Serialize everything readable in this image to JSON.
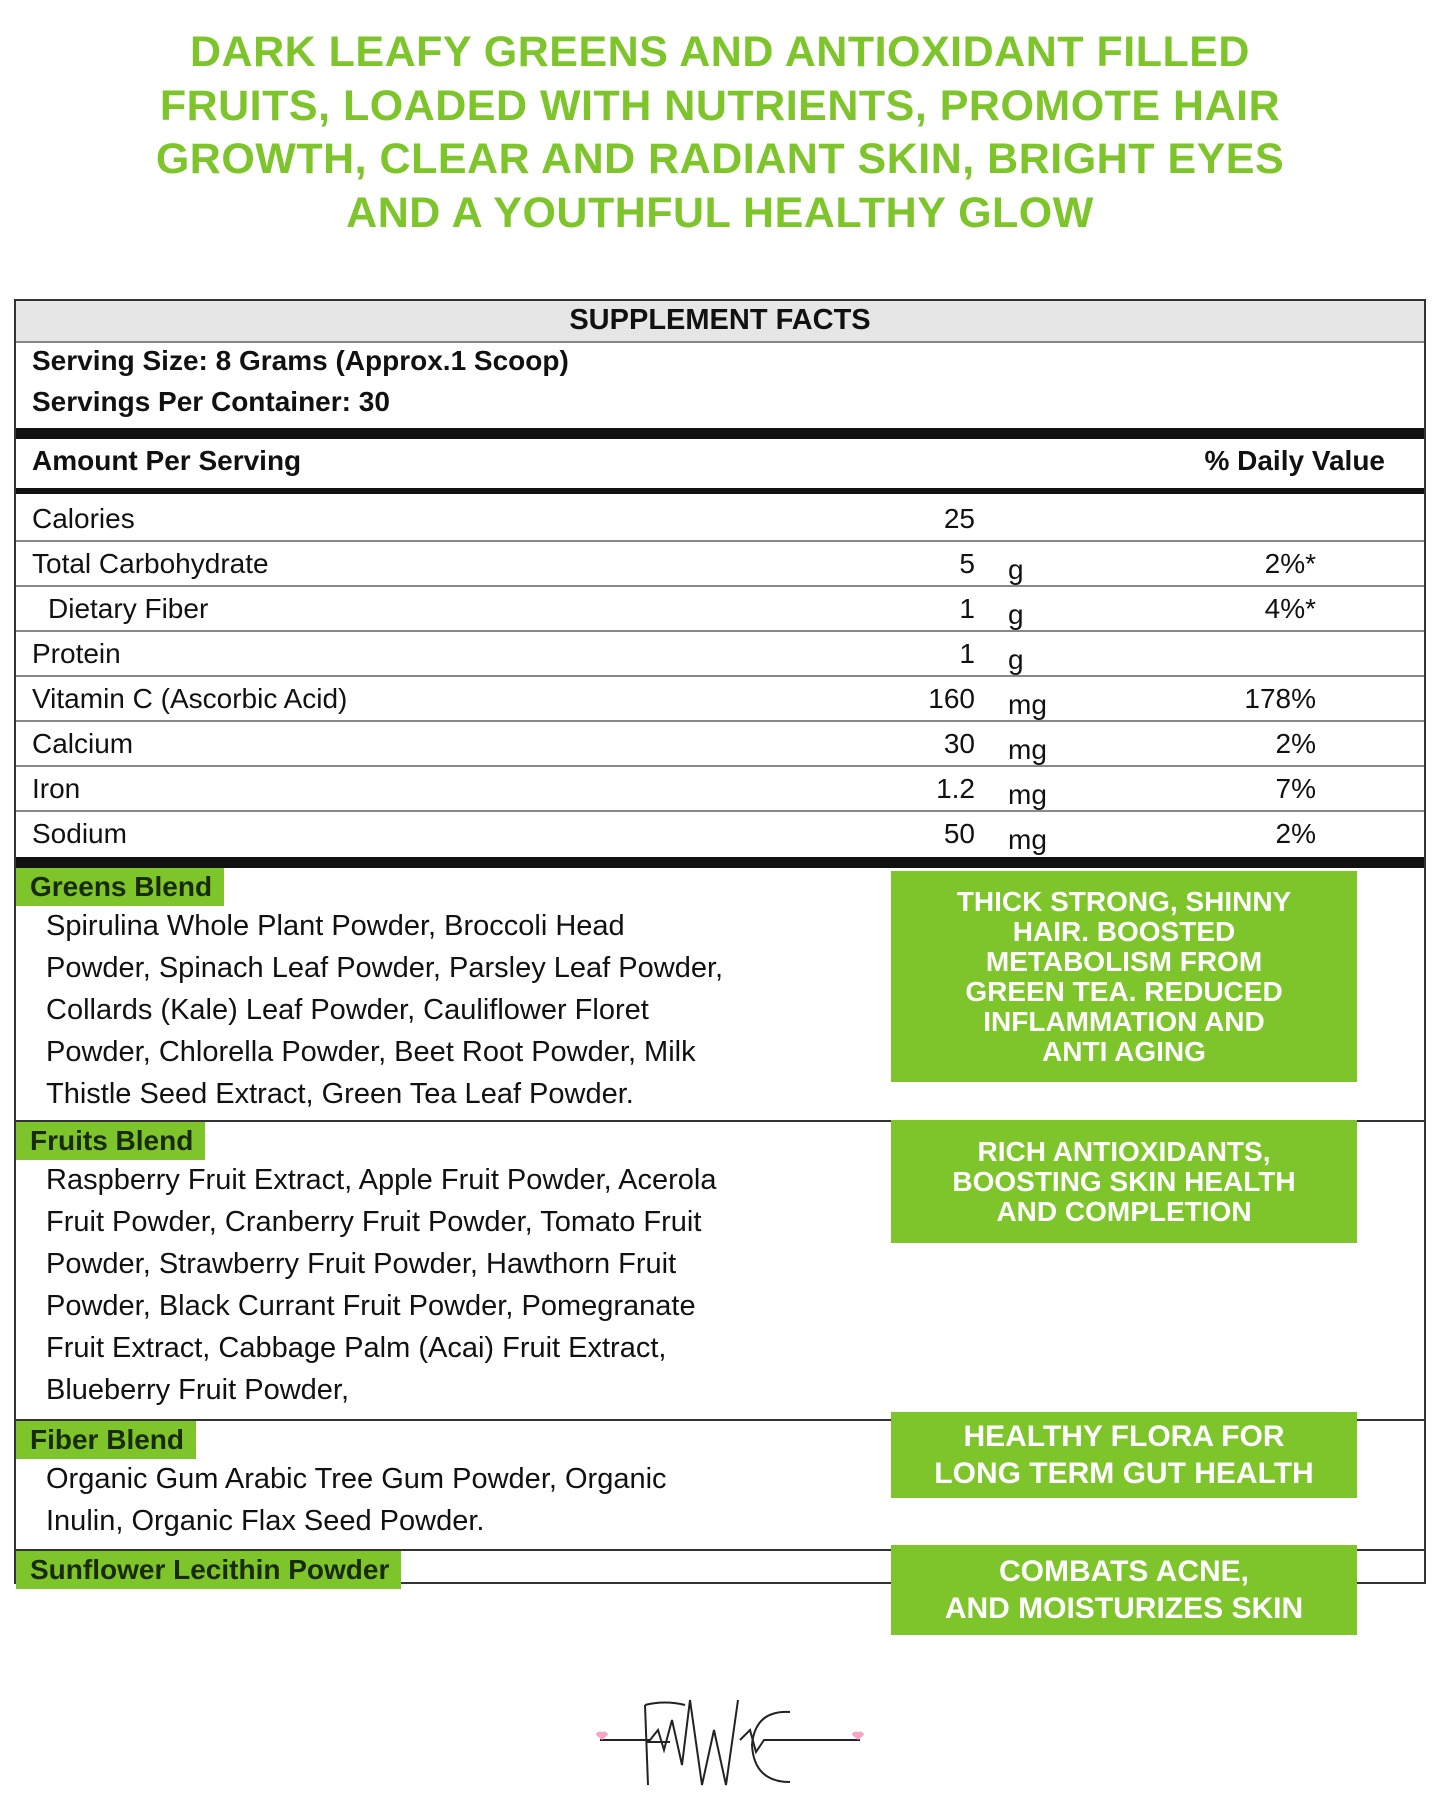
{
  "heading": {
    "lines": [
      "DARK LEAFY GREENS AND ANTIOXIDANT FILLED",
      "FRUITS, LOADED WITH NUTRIENTS, PROMOTE HAIR",
      "GROWTH, CLEAR AND RADIANT SKIN, BRIGHT EYES",
      "AND A YOUTHFUL HEALTHY GLOW"
    ]
  },
  "facts": {
    "title": "SUPPLEMENT FACTS",
    "serving_size": "Serving Size: 8 Grams (Approx.1 Scoop)",
    "servings": "Servings Per Container: 30",
    "amount_header": "Amount Per Serving",
    "dv_header": "% Daily Value",
    "rows": [
      [
        "Calories",
        "25",
        "",
        ""
      ],
      [
        "Total Carbohydrate",
        "5",
        "g",
        "2%*"
      ],
      [
        "Dietary Fiber",
        "1",
        "g",
        "4%*"
      ],
      [
        "Protein",
        "1",
        "g",
        ""
      ],
      [
        "Vitamin C (Ascorbic Acid)",
        "160",
        "mg",
        "178%"
      ],
      [
        "Calcium",
        "30",
        "mg",
        "2%"
      ],
      [
        "Iron",
        "1.2",
        "mg",
        "7%"
      ],
      [
        "Sodium",
        "50",
        "mg",
        "2%"
      ]
    ]
  },
  "blends": [
    {
      "name": "Greens Blend",
      "lines": [
        "Spirulina Whole Plant Powder, Broccoli Head",
        "Powder, Spinach Leaf Powder, Parsley Leaf Powder,",
        "Collards (Kale) Leaf Powder, Cauliflower Floret",
        "Powder, Chlorella Powder, Beet Root Powder, Milk",
        "Thistle Seed Extract, Green Tea Leaf Powder."
      ]
    },
    {
      "name": "Fruits Blend",
      "lines": [
        "Raspberry Fruit Extract, Apple Fruit Powder, Acerola",
        "Fruit Powder, Cranberry Fruit Powder, Tomato Fruit",
        "Powder, Strawberry Fruit Powder, Hawthorn Fruit",
        "Powder, Black Currant Fruit Powder, Pomegranate",
        "Fruit Extract, Cabbage Palm (Acai) Fruit Extract,",
        "Blueberry Fruit Powder,"
      ]
    },
    {
      "name": "Fiber Blend",
      "lines": [
        "Organic Gum Arabic Tree Gum Powder, Organic",
        "Inulin, Organic Flax Seed Powder."
      ]
    },
    {
      "name": "Sunflower Lecithin Powder",
      "lines": []
    }
  ],
  "callouts": [
    [
      "THICK STRONG, SHINNY",
      "HAIR. BOOSTED",
      "METABOLISM FROM",
      "GREEN TEA. REDUCED",
      "INFLAMMATION AND",
      "ANTI AGING"
    ],
    [
      "RICH ANTIOXIDANTS,",
      "BOOSTING SKIN HEALTH",
      "AND COMPLETION"
    ],
    [
      "HEALTHY FLORA FOR",
      "LONG TERM GUT HEALTH"
    ],
    [
      "COMBATS ACNE,",
      "AND MOISTURIZES SKIN"
    ]
  ]
}
